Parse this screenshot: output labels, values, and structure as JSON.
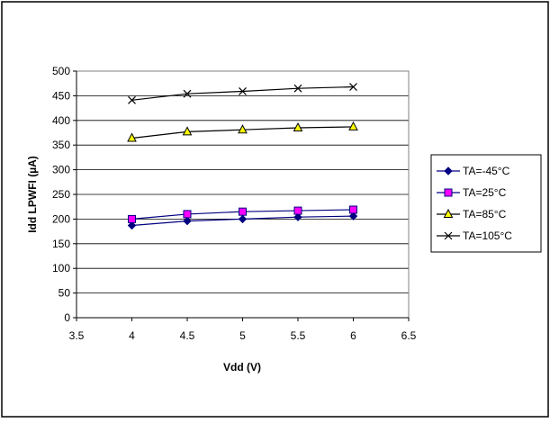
{
  "chart_data": {
    "type": "line",
    "title": "",
    "xlabel": "Vdd (V)",
    "ylabel": "Idd LPWFI (µA)",
    "xlim": [
      3.5,
      6.5
    ],
    "ylim": [
      0,
      500
    ],
    "xticks": [
      "3.5",
      "4",
      "4.5",
      "5",
      "5.5",
      "6",
      "6.5"
    ],
    "yticks": [
      "0",
      "50",
      "100",
      "150",
      "200",
      "250",
      "300",
      "350",
      "400",
      "450",
      "500"
    ],
    "grid": "horizontal",
    "legend": "right",
    "x": [
      4,
      4.5,
      5,
      5.5,
      6
    ],
    "series": [
      {
        "name": "TA=-45°C",
        "values": [
          187,
          196,
          200,
          204,
          206
        ],
        "color": "#000080",
        "marker": "diamond"
      },
      {
        "name": "TA=25°C",
        "values": [
          200,
          210,
          215,
          217,
          219
        ],
        "color": "#000080",
        "marker": "square",
        "marker_fill": "#ff00ff"
      },
      {
        "name": "TA=85°C",
        "values": [
          364,
          377,
          381,
          385,
          387
        ],
        "color": "#000000",
        "marker": "triangle",
        "marker_fill": "#ffff00"
      },
      {
        "name": "TA=105°C",
        "values": [
          441,
          454,
          459,
          465,
          468
        ],
        "color": "#000000",
        "marker": "x"
      }
    ]
  }
}
